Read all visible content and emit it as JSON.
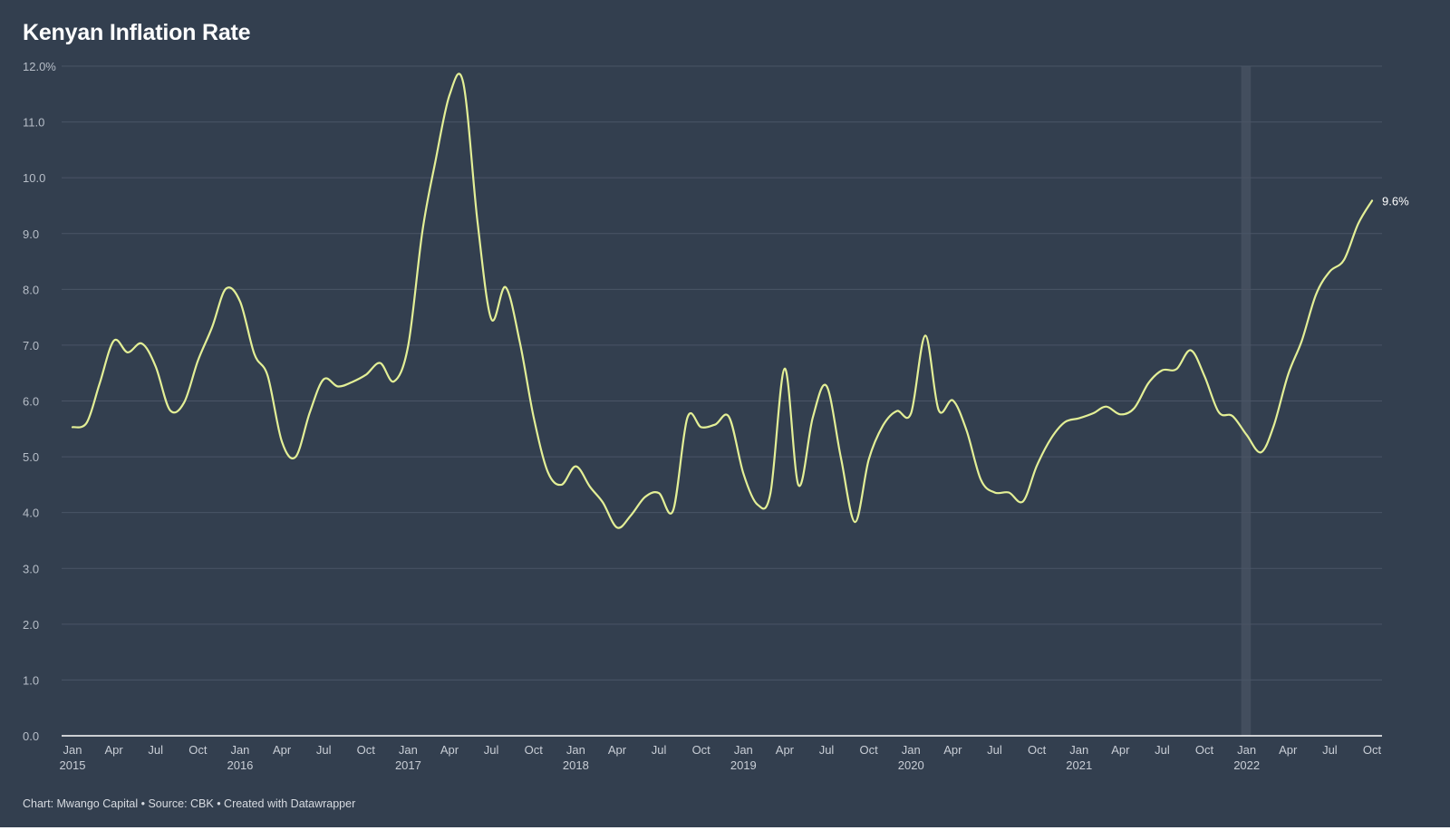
{
  "title": "Kenyan Inflation Rate",
  "footer": "Chart: Mwango Capital • Source: CBK • Created with Datawrapper",
  "colors": {
    "background": "#333f4f",
    "line": "#e3ef96",
    "grid": "#4a5566",
    "highlight_band": "#434e5e",
    "text": "#ffffff"
  },
  "chart_data": {
    "type": "line",
    "title": "Kenyan Inflation Rate",
    "xlabel": "",
    "ylabel": "",
    "ylim": [
      0,
      12
    ],
    "grid": true,
    "y_ticks": [
      "12.0%",
      "11.0",
      "10.0",
      "9.0",
      "8.0",
      "7.0",
      "6.0",
      "5.0",
      "4.0",
      "3.0",
      "2.0",
      "1.0",
      "0.0"
    ],
    "x_ticks": [
      {
        "date": "2015-01",
        "label": "Jan",
        "year": "2015"
      },
      {
        "date": "2015-04",
        "label": "Apr",
        "year": ""
      },
      {
        "date": "2015-07",
        "label": "Jul",
        "year": ""
      },
      {
        "date": "2015-10",
        "label": "Oct",
        "year": ""
      },
      {
        "date": "2016-01",
        "label": "Jan",
        "year": "2016"
      },
      {
        "date": "2016-04",
        "label": "Apr",
        "year": ""
      },
      {
        "date": "2016-07",
        "label": "Jul",
        "year": ""
      },
      {
        "date": "2016-10",
        "label": "Oct",
        "year": ""
      },
      {
        "date": "2017-01",
        "label": "Jan",
        "year": "2017"
      },
      {
        "date": "2017-04",
        "label": "Apr",
        "year": ""
      },
      {
        "date": "2017-07",
        "label": "Jul",
        "year": ""
      },
      {
        "date": "2017-10",
        "label": "Oct",
        "year": ""
      },
      {
        "date": "2018-01",
        "label": "Jan",
        "year": "2018"
      },
      {
        "date": "2018-04",
        "label": "Apr",
        "year": ""
      },
      {
        "date": "2018-07",
        "label": "Jul",
        "year": ""
      },
      {
        "date": "2018-10",
        "label": "Oct",
        "year": ""
      },
      {
        "date": "2019-01",
        "label": "Jan",
        "year": "2019"
      },
      {
        "date": "2019-04",
        "label": "Apr",
        "year": ""
      },
      {
        "date": "2019-07",
        "label": "Jul",
        "year": ""
      },
      {
        "date": "2019-10",
        "label": "Oct",
        "year": ""
      },
      {
        "date": "2020-01",
        "label": "Jan",
        "year": "2020"
      },
      {
        "date": "2020-04",
        "label": "Apr",
        "year": ""
      },
      {
        "date": "2020-07",
        "label": "Jul",
        "year": ""
      },
      {
        "date": "2020-10",
        "label": "Oct",
        "year": ""
      },
      {
        "date": "2021-01",
        "label": "Jan",
        "year": "2021"
      },
      {
        "date": "2021-04",
        "label": "Apr",
        "year": ""
      },
      {
        "date": "2021-07",
        "label": "Jul",
        "year": ""
      },
      {
        "date": "2021-10",
        "label": "Oct",
        "year": ""
      },
      {
        "date": "2022-01",
        "label": "Jan",
        "year": "2022"
      },
      {
        "date": "2022-04",
        "label": "Apr",
        "year": ""
      },
      {
        "date": "2022-07",
        "label": "Jul",
        "year": ""
      },
      {
        "date": "2022-10",
        "label": "Oct",
        "year": ""
      }
    ],
    "highlight_range": [
      "2021-12-20",
      "2022-01-10"
    ],
    "end_label": "9.6%",
    "series": [
      {
        "dates": [
          "2015-01",
          "2015-02",
          "2015-03",
          "2015-04",
          "2015-05",
          "2015-06",
          "2015-07",
          "2015-08",
          "2015-09",
          "2015-10",
          "2015-11",
          "2015-12",
          "2016-01",
          "2016-02",
          "2016-03",
          "2016-04",
          "2016-05",
          "2016-06",
          "2016-07",
          "2016-08",
          "2016-09",
          "2016-10",
          "2016-11",
          "2016-12",
          "2017-01",
          "2017-02",
          "2017-03",
          "2017-04",
          "2017-05",
          "2017-06",
          "2017-07",
          "2017-08",
          "2017-09",
          "2017-10",
          "2017-11",
          "2017-12",
          "2018-01",
          "2018-02",
          "2018-03",
          "2018-04",
          "2018-05",
          "2018-06",
          "2018-07",
          "2018-08",
          "2018-09",
          "2018-10",
          "2018-11",
          "2018-12",
          "2019-01",
          "2019-02",
          "2019-03",
          "2019-04",
          "2019-05",
          "2019-06",
          "2019-07",
          "2019-08",
          "2019-09",
          "2019-10",
          "2019-11",
          "2019-12",
          "2020-01",
          "2020-02",
          "2020-03",
          "2020-04",
          "2020-05",
          "2020-06",
          "2020-07",
          "2020-08",
          "2020-09",
          "2020-10",
          "2020-11",
          "2020-12",
          "2021-01",
          "2021-02",
          "2021-03",
          "2021-04",
          "2021-05",
          "2021-06",
          "2021-07",
          "2021-08",
          "2021-09",
          "2021-10",
          "2021-11",
          "2021-12",
          "2022-01",
          "2022-02",
          "2022-03",
          "2022-04",
          "2022-05",
          "2022-06",
          "2022-07",
          "2022-08",
          "2022-09",
          "2022-10"
        ],
        "values": [
          5.53,
          5.61,
          6.31,
          7.08,
          6.87,
          7.03,
          6.62,
          5.84,
          5.97,
          6.72,
          7.32,
          8.01,
          7.78,
          6.84,
          6.45,
          5.27,
          5.0,
          5.8,
          6.39,
          6.26,
          6.34,
          6.47,
          6.68,
          6.35,
          6.99,
          9.04,
          10.28,
          11.48,
          11.7,
          9.21,
          7.47,
          8.04,
          7.06,
          5.72,
          4.73,
          4.5,
          4.83,
          4.46,
          4.18,
          3.73,
          3.95,
          4.28,
          4.35,
          4.04,
          5.7,
          5.53,
          5.58,
          5.71,
          4.7,
          4.14,
          4.35,
          6.58,
          4.49,
          5.7,
          6.27,
          5.0,
          3.83,
          4.95,
          5.56,
          5.82,
          5.78,
          7.17,
          5.84,
          6.01,
          5.47,
          4.59,
          4.36,
          4.36,
          4.2,
          4.84,
          5.33,
          5.62,
          5.69,
          5.78,
          5.9,
          5.76,
          5.87,
          6.32,
          6.55,
          6.57,
          6.91,
          6.45,
          5.8,
          5.73,
          5.39,
          5.08,
          5.56,
          6.47,
          7.08,
          7.91,
          8.32,
          8.53,
          9.18,
          9.59
        ]
      }
    ]
  }
}
